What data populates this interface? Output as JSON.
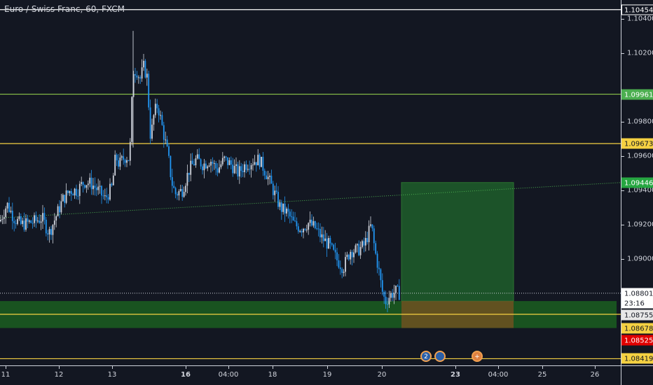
{
  "chart": {
    "title": "Euro / Swiss Franc, 60, FXCM",
    "ylim": [
      1.0838,
      1.1051
    ],
    "x_range": [
      0,
      886
    ]
  },
  "price_axis": {
    "labels": [
      "1.10400",
      "1.10200",
      "1.09800",
      "1.09600",
      "1.09400",
      "1.09200",
      "1.09000"
    ],
    "values": [
      1.104,
      1.102,
      1.098,
      1.096,
      1.094,
      1.092,
      1.09
    ],
    "badges": [
      {
        "text": "1.10454",
        "value": 1.10454,
        "bg": "#131722",
        "fg": "#ffffff",
        "border": "#ffffff"
      },
      {
        "text": "1.09961",
        "value": 1.09961,
        "bg": "#4caf50",
        "fg": "#ffffff",
        "border": "#4caf50"
      },
      {
        "text": "1.09673",
        "value": 1.09673,
        "bg": "#f5d142",
        "fg": "#131722",
        "border": "#f5d142"
      },
      {
        "text": "1.09446",
        "value": 1.09446,
        "bg": "#26a641",
        "fg": "#ffffff",
        "border": "#26a641"
      },
      {
        "text": "1.08801",
        "value": 1.08801,
        "bg": "#ffffff",
        "fg": "#131722",
        "border": "#ffffff"
      },
      {
        "text": "23:16",
        "value": 1.08742,
        "bg": "#ffffff",
        "fg": "#131722",
        "border": "#ffffff"
      },
      {
        "text": "1.08755",
        "value": 1.08675,
        "bg": "#e8e8e8",
        "fg": "#131722",
        "border": "#e8e8e8"
      },
      {
        "text": "1.08678",
        "value": 1.08598,
        "bg": "#f5d142",
        "fg": "#131722",
        "border": "#f5d142"
      },
      {
        "text": "1.08525",
        "value": 1.08525,
        "bg": "#e00000",
        "fg": "#ffffff",
        "border": "#e00000"
      },
      {
        "text": "1.08419",
        "value": 1.08419,
        "bg": "#f5d142",
        "fg": "#131722",
        "border": "#f5d142"
      }
    ]
  },
  "time_axis": {
    "labels": [
      {
        "text": "11",
        "bold": false
      },
      {
        "text": "12",
        "bold": false
      },
      {
        "text": "13",
        "bold": false
      },
      {
        "text": "16",
        "bold": true
      },
      {
        "text": "04:00",
        "bold": false
      },
      {
        "text": "18",
        "bold": false
      },
      {
        "text": "19",
        "bold": false
      },
      {
        "text": "20",
        "bold": false
      },
      {
        "text": "23",
        "bold": true
      },
      {
        "text": "04:00",
        "bold": false
      },
      {
        "text": "25",
        "bold": false
      },
      {
        "text": "26",
        "bold": false
      }
    ],
    "positions": [
      8,
      84,
      160,
      265,
      326,
      389,
      467,
      545,
      650,
      711,
      774,
      849
    ]
  },
  "horizontal_lines": [
    {
      "value": 1.10454,
      "color": "#ffffff"
    },
    {
      "value": 1.09961,
      "color": "#8bc34a"
    },
    {
      "value": 1.09673,
      "color": "#f5d142"
    },
    {
      "value": 1.08678,
      "color": "#f5d142"
    },
    {
      "value": 1.08419,
      "color": "#f5d142"
    }
  ],
  "current_price_line": {
    "value": 1.08801,
    "color": "#cfd3dc"
  },
  "trend_line": {
    "x0": 0,
    "y0": 1.0924,
    "x1": 886,
    "y1": 1.09446,
    "color": "#4caf50"
  },
  "zones": [
    {
      "name": "support-zone",
      "x0": 0,
      "x1": 880,
      "y_top": 1.08755,
      "y_bottom": 1.08598,
      "color": "#1b5e20",
      "opacity": 0.85
    }
  ],
  "position": {
    "x0": 573,
    "x1": 733,
    "entry": 1.08755,
    "target": 1.09446,
    "stop": 1.08598,
    "profit_color": "#1e5a2a",
    "loss_color": "#7a5020"
  },
  "events": [
    {
      "name": "economic-event-icon",
      "x": 608,
      "label": "2",
      "border": "#f0a050",
      "bg": "#2a5fa8"
    },
    {
      "name": "economic-event-icon",
      "x": 628,
      "label": "",
      "border": "#f0a050",
      "bg": "#2a5fa8"
    },
    {
      "name": "dividend-event-icon",
      "x": 681,
      "label": "+",
      "border": "#f0a050",
      "bg": "#e08040"
    }
  ],
  "candles_color": {
    "up": "#cfd3dc",
    "down": "#2196f3"
  },
  "chart_data": {
    "type": "line",
    "title": "Euro / Swiss Franc, 60, FXCM",
    "x": [
      0,
      10,
      20,
      30,
      40,
      50,
      60,
      70,
      80,
      90,
      100,
      110,
      120,
      130,
      140,
      150,
      160,
      165,
      170,
      175,
      180,
      185,
      190,
      195,
      200,
      205,
      210,
      215,
      220,
      225,
      230,
      235,
      240,
      245,
      250,
      260,
      270,
      280,
      290,
      300,
      310,
      320,
      330,
      340,
      350,
      360,
      370,
      380,
      390,
      400,
      410,
      420,
      430,
      440,
      450,
      460,
      470,
      480,
      490,
      500,
      510,
      520,
      530,
      535,
      540,
      545,
      550,
      555,
      560,
      565,
      570
    ],
    "values": [
      1.0922,
      1.0932,
      1.0924,
      1.092,
      1.0921,
      1.0922,
      1.0924,
      1.0915,
      1.0925,
      1.0935,
      1.094,
      1.094,
      1.0945,
      1.0944,
      1.094,
      1.0935,
      1.0942,
      1.096,
      1.0955,
      1.0958,
      1.096,
      1.0958,
      1.101,
      1.101,
      1.1005,
      1.1012,
      1.1006,
      1.097,
      1.0985,
      1.099,
      1.098,
      1.097,
      1.096,
      1.0945,
      1.0938,
      1.094,
      1.0952,
      1.0958,
      1.0955,
      1.0958,
      1.0952,
      1.0958,
      1.0955,
      1.095,
      1.0955,
      1.0957,
      1.0958,
      1.095,
      1.094,
      1.093,
      1.0927,
      1.092,
      1.0918,
      1.0921,
      1.0918,
      1.0912,
      1.0908,
      1.09,
      1.0895,
      1.0905,
      1.0905,
      1.0908,
      1.092,
      1.0905,
      1.0895,
      1.0882,
      1.0875,
      1.0878,
      1.088,
      1.0881,
      1.088
    ],
    "ylim": [
      1.0838,
      1.1051
    ]
  }
}
